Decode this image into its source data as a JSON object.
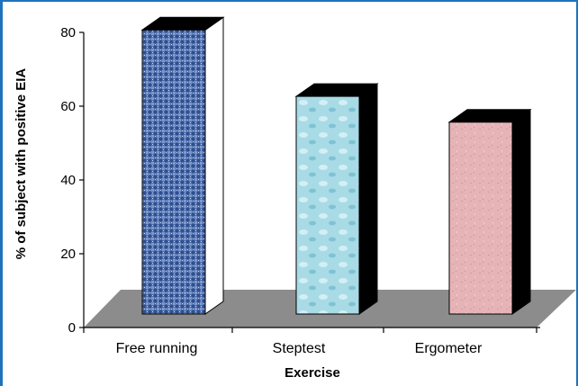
{
  "chart_data": {
    "type": "bar",
    "categories": [
      "Free running",
      "Steptest",
      "Ergometer"
    ],
    "values": [
      77,
      59,
      52
    ],
    "series": [
      {
        "values": [
          77,
          59,
          52
        ]
      }
    ],
    "xlabel": "Exercise",
    "ylabel": "% of subject with positive EIA",
    "ylim": [
      0,
      80
    ],
    "yticks": [
      "0",
      "20",
      "40",
      "60",
      "80"
    ],
    "grid": false,
    "legend": "none",
    "style": "3d"
  },
  "colors": {
    "frame": "#1e73be",
    "floor": "#8c8c8c",
    "bar_top": "#000000",
    "bar_side": "#000000",
    "free_running": "#4a6aa8",
    "steptest": "#a8dbe6",
    "ergometer": "#e6b4b6"
  }
}
